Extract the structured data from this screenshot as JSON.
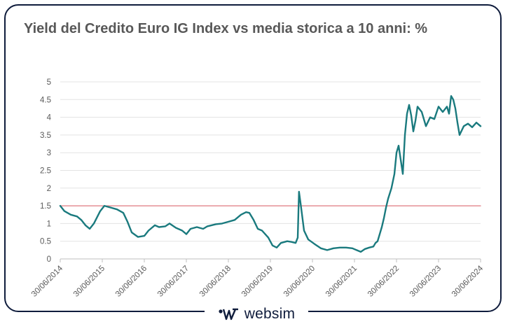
{
  "chart_data": {
    "type": "line",
    "title": "Yield del Credito Euro IG Index vs media storica a 10 anni: %",
    "xlabel": "",
    "ylabel": "",
    "ylim": [
      0,
      5
    ],
    "yticks": [
      "0",
      "0.5",
      "1",
      "1.5",
      "2",
      "2.5",
      "3",
      "3.5",
      "4",
      "4.5",
      "5"
    ],
    "xlim": [
      2014.5,
      2024.5
    ],
    "xtick_labels": [
      "30/06/2014",
      "30/06/2015",
      "30/06/2016",
      "30/06/2017",
      "30/06/2018",
      "30/06/2019",
      "30/06/2020",
      "30/06/2021",
      "30/06/2022",
      "30/06/2023",
      "30/06/2024"
    ],
    "grid": true,
    "series": [
      {
        "name": "Yield del Credito Euro IG Index",
        "color": "#1a7a7e",
        "x": [
          2014.5,
          2014.6,
          2014.75,
          2014.9,
          2015.0,
          2015.1,
          2015.2,
          2015.3,
          2015.45,
          2015.55,
          2015.7,
          2015.85,
          2016.0,
          2016.1,
          2016.2,
          2016.35,
          2016.5,
          2016.6,
          2016.75,
          2016.85,
          2017.0,
          2017.1,
          2017.25,
          2017.4,
          2017.5,
          2017.6,
          2017.75,
          2017.9,
          2018.0,
          2018.1,
          2018.2,
          2018.35,
          2018.5,
          2018.65,
          2018.8,
          2018.92,
          2019.0,
          2019.1,
          2019.2,
          2019.3,
          2019.45,
          2019.55,
          2019.65,
          2019.75,
          2019.9,
          2020.0,
          2020.1,
          2020.15,
          2020.18,
          2020.22,
          2020.3,
          2020.4,
          2020.55,
          2020.7,
          2020.85,
          2021.0,
          2021.15,
          2021.3,
          2021.45,
          2021.55,
          2021.65,
          2021.75,
          2021.85,
          2021.95,
          2022.0,
          2022.05,
          2022.1,
          2022.15,
          2022.2,
          2022.25,
          2022.3,
          2022.38,
          2022.45,
          2022.5,
          2022.55,
          2022.6,
          2022.65,
          2022.7,
          2022.75,
          2022.8,
          2022.85,
          2022.9,
          2022.95,
          2023.0,
          2023.1,
          2023.2,
          2023.3,
          2023.4,
          2023.5,
          2023.6,
          2023.7,
          2023.75,
          2023.8,
          2023.85,
          2023.9,
          2023.95,
          2024.0,
          2024.1,
          2024.2,
          2024.3,
          2024.4,
          2024.5
        ],
        "values": [
          1.5,
          1.35,
          1.25,
          1.2,
          1.1,
          0.95,
          0.85,
          1.0,
          1.35,
          1.5,
          1.45,
          1.4,
          1.3,
          1.05,
          0.75,
          0.62,
          0.65,
          0.8,
          0.95,
          0.9,
          0.92,
          1.0,
          0.88,
          0.8,
          0.7,
          0.85,
          0.9,
          0.85,
          0.92,
          0.95,
          0.98,
          1.0,
          1.05,
          1.1,
          1.25,
          1.32,
          1.3,
          1.1,
          0.85,
          0.8,
          0.6,
          0.38,
          0.32,
          0.45,
          0.5,
          0.48,
          0.45,
          0.6,
          1.9,
          1.55,
          0.8,
          0.55,
          0.42,
          0.3,
          0.25,
          0.3,
          0.32,
          0.32,
          0.3,
          0.25,
          0.2,
          0.28,
          0.32,
          0.35,
          0.45,
          0.5,
          0.7,
          0.9,
          1.15,
          1.45,
          1.7,
          2.0,
          2.4,
          3.0,
          3.2,
          2.8,
          2.4,
          3.5,
          4.1,
          4.35,
          4.05,
          3.6,
          3.9,
          4.3,
          4.15,
          3.75,
          4.0,
          3.95,
          4.3,
          4.15,
          4.3,
          4.1,
          4.6,
          4.5,
          4.25,
          3.85,
          3.5,
          3.75,
          3.82,
          3.72,
          3.85,
          3.75
        ]
      },
      {
        "name": "Media storica a 10 anni",
        "color": "#e07a80",
        "x": [
          2014.5,
          2024.5
        ],
        "values": [
          1.5,
          1.5
        ]
      }
    ]
  },
  "branding": {
    "logo_text": "websim"
  }
}
